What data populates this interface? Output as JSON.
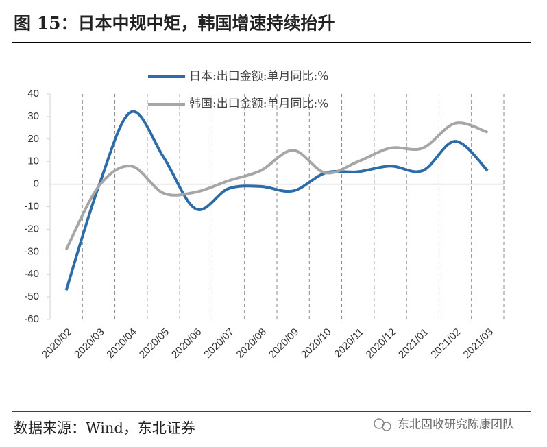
{
  "chart_data": {
    "type": "line",
    "title": "图 15：日本中规中矩，韩国增速持续抬升",
    "categories": [
      "2020/02",
      "2020/03",
      "2020/04",
      "2020/05",
      "2020/06",
      "2020/07",
      "2020/08",
      "2020/09",
      "2020/10",
      "2020/11",
      "2020/12",
      "2021/01",
      "2021/02",
      "2021/03"
    ],
    "series": [
      {
        "name": "日本:出口金额:单月同比:%",
        "color": "#2e6ca8",
        "values": [
          -47,
          -1,
          32,
          12,
          -11,
          -2,
          -1,
          -3,
          5,
          5.5,
          8,
          6,
          19,
          6
        ]
      },
      {
        "name": "韩国:出口金额:单月同比:%",
        "color": "#a6a6a6",
        "values": [
          -29,
          -1,
          8,
          -4,
          -3.5,
          1.5,
          6,
          15,
          5,
          10,
          16,
          16,
          27,
          23
        ]
      }
    ],
    "ylim": [
      -60,
      40
    ],
    "yticks": [
      -60,
      -50,
      -40,
      -30,
      -20,
      -10,
      0,
      10,
      20,
      30,
      40
    ],
    "smooth": true,
    "legend": "top"
  },
  "source": "数据来源：Wind，东北证券",
  "watermark": "东北固收研究陈康团队"
}
